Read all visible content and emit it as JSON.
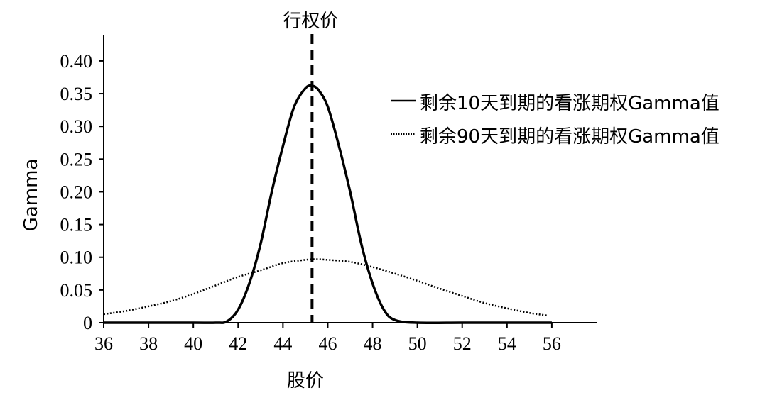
{
  "chart_data": {
    "type": "line",
    "xlabel": "股价",
    "ylabel": "Gamma",
    "xlim": [
      36,
      58
    ],
    "ylim": [
      0,
      0.44
    ],
    "xticks": [
      36,
      38,
      40,
      42,
      44,
      46,
      48,
      50,
      52,
      54,
      56
    ],
    "xtick_labels": [
      "36",
      "38",
      "40",
      "42",
      "44",
      "46",
      "48",
      "50",
      "52",
      "54",
      "56"
    ],
    "yticks": [
      0,
      0.05,
      0.1,
      0.15,
      0.2,
      0.25,
      0.3,
      0.35,
      0.4
    ],
    "ytick_labels": [
      "0",
      "0.05",
      "0.10",
      "0.15",
      "0.20",
      "0.25",
      "0.30",
      "0.35",
      "0.40"
    ],
    "grid": false,
    "legend_position": "right",
    "annotation": {
      "label": "行权价",
      "x": 45.3
    },
    "series": [
      {
        "name": "剩余10天到期的看涨期权Gamma值",
        "style": "solid",
        "x": [
          36,
          38,
          40,
          41,
          41.5,
          42,
          42.5,
          43,
          43.5,
          44,
          44.5,
          45,
          45.3,
          45.6,
          46,
          46.5,
          47,
          47.5,
          48,
          48.5,
          49,
          50,
          52,
          54,
          56
        ],
        "y": [
          0.0,
          0.0,
          0.0,
          0.0,
          0.002,
          0.02,
          0.06,
          0.12,
          0.2,
          0.27,
          0.33,
          0.358,
          0.362,
          0.355,
          0.33,
          0.27,
          0.2,
          0.12,
          0.06,
          0.02,
          0.004,
          0.0,
          0.0,
          0.0,
          0.0
        ]
      },
      {
        "name": "剩余90天到期的看涨期权Gamma值",
        "style": "dotted",
        "x": [
          36,
          37,
          38,
          39,
          40,
          41,
          42,
          43,
          44,
          45,
          45.5,
          46,
          47,
          48,
          49,
          50,
          51,
          52,
          53,
          54,
          55,
          55.8
        ],
        "y": [
          0.013,
          0.018,
          0.025,
          0.033,
          0.044,
          0.057,
          0.07,
          0.08,
          0.091,
          0.096,
          0.097,
          0.096,
          0.093,
          0.085,
          0.075,
          0.064,
          0.052,
          0.041,
          0.03,
          0.022,
          0.015,
          0.011
        ]
      }
    ],
    "colors": {
      "line": "#000000",
      "axis": "#000000"
    }
  }
}
